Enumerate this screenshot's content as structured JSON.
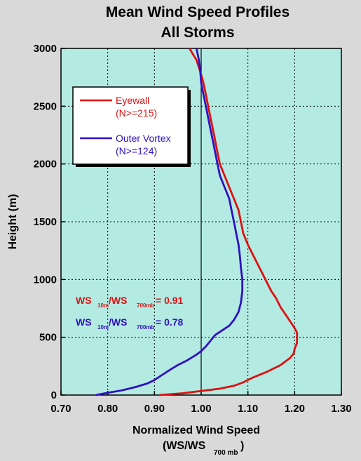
{
  "chart_data": {
    "type": "line",
    "title": "Mean Wind Speed Profiles",
    "subtitle": "All Storms",
    "xlabel": "Normalized Wind Speed",
    "xlabel_line2": "(WS/WS",
    "xlabel_line2_sub": "700 mb",
    "xlabel_line2_end": ")",
    "ylabel": "Height (m)",
    "xlim": [
      0.7,
      1.3
    ],
    "ylim": [
      0,
      3000
    ],
    "x_ticks": [
      "0.70",
      "0.80",
      "0.90",
      "1.00",
      "1.10",
      "1.20",
      "1.30"
    ],
    "y_ticks": [
      "0",
      "500",
      "1000",
      "1500",
      "2000",
      "2500",
      "3000"
    ],
    "grid": true,
    "reference_line_x": 1.0,
    "plot_background": "#b3ebe3",
    "legend_position": "upper-left",
    "series": [
      {
        "name": "Eyewall",
        "name_n": "(N>=215)",
        "color": "#e01010",
        "points": [
          [
            0.91,
            0
          ],
          [
            0.96,
            15
          ],
          [
            1.0,
            35
          ],
          [
            1.04,
            55
          ],
          [
            1.07,
            80
          ],
          [
            1.09,
            110
          ],
          [
            1.11,
            150
          ],
          [
            1.14,
            200
          ],
          [
            1.17,
            260
          ],
          [
            1.19,
            320
          ],
          [
            1.198,
            360
          ],
          [
            1.2,
            400
          ],
          [
            1.205,
            450
          ],
          [
            1.205,
            500
          ],
          [
            1.205,
            540
          ],
          [
            1.2,
            580
          ],
          [
            1.19,
            640
          ],
          [
            1.18,
            700
          ],
          [
            1.17,
            760
          ],
          [
            1.16,
            840
          ],
          [
            1.15,
            900
          ],
          [
            1.14,
            980
          ],
          [
            1.13,
            1060
          ],
          [
            1.12,
            1140
          ],
          [
            1.11,
            1220
          ],
          [
            1.1,
            1300
          ],
          [
            1.09,
            1400
          ],
          [
            1.085,
            1500
          ],
          [
            1.08,
            1600
          ],
          [
            1.07,
            1700
          ],
          [
            1.06,
            1800
          ],
          [
            1.05,
            1900
          ],
          [
            1.04,
            2000
          ],
          [
            1.035,
            2100
          ],
          [
            1.03,
            2200
          ],
          [
            1.025,
            2300
          ],
          [
            1.02,
            2400
          ],
          [
            1.015,
            2500
          ],
          [
            1.01,
            2600
          ],
          [
            1.005,
            2700
          ],
          [
            0.998,
            2800
          ],
          [
            0.99,
            2900
          ],
          [
            0.975,
            3000
          ]
        ]
      },
      {
        "name": "Outer Vortex",
        "name_n": "(N>=124)",
        "color": "#3010c0",
        "points": [
          [
            0.775,
            0
          ],
          [
            0.8,
            20
          ],
          [
            0.83,
            40
          ],
          [
            0.86,
            70
          ],
          [
            0.885,
            100
          ],
          [
            0.9,
            130
          ],
          [
            0.915,
            170
          ],
          [
            0.93,
            210
          ],
          [
            0.95,
            260
          ],
          [
            0.97,
            300
          ],
          [
            0.99,
            350
          ],
          [
            1.0,
            380
          ],
          [
            1.01,
            420
          ],
          [
            1.02,
            470
          ],
          [
            1.03,
            520
          ],
          [
            1.045,
            560
          ],
          [
            1.06,
            600
          ],
          [
            1.07,
            650
          ],
          [
            1.08,
            720
          ],
          [
            1.085,
            800
          ],
          [
            1.088,
            900
          ],
          [
            1.088,
            1000
          ],
          [
            1.085,
            1100
          ],
          [
            1.083,
            1200
          ],
          [
            1.08,
            1300
          ],
          [
            1.075,
            1400
          ],
          [
            1.07,
            1500
          ],
          [
            1.065,
            1600
          ],
          [
            1.06,
            1700
          ],
          [
            1.05,
            1800
          ],
          [
            1.04,
            1900
          ],
          [
            1.035,
            2000
          ],
          [
            1.03,
            2100
          ],
          [
            1.025,
            2200
          ],
          [
            1.02,
            2300
          ],
          [
            1.015,
            2400
          ],
          [
            1.01,
            2500
          ],
          [
            1.005,
            2600
          ],
          [
            1.0,
            2700
          ],
          [
            0.998,
            2800
          ],
          [
            0.995,
            2900
          ],
          [
            0.99,
            3000
          ]
        ]
      }
    ],
    "annotations": [
      {
        "id": "eyewall-ratio",
        "ws1": "WS",
        "sub1": "10m",
        "ws2": "/WS",
        "sub2": "700mb",
        "value": "= 0.91",
        "color": "#e01010"
      },
      {
        "id": "outer-ratio",
        "ws1": "WS",
        "sub1": "10m",
        "ws2": "/WS",
        "sub2": "700mb",
        "value": "= 0.78",
        "color": "#3010c0"
      }
    ]
  }
}
